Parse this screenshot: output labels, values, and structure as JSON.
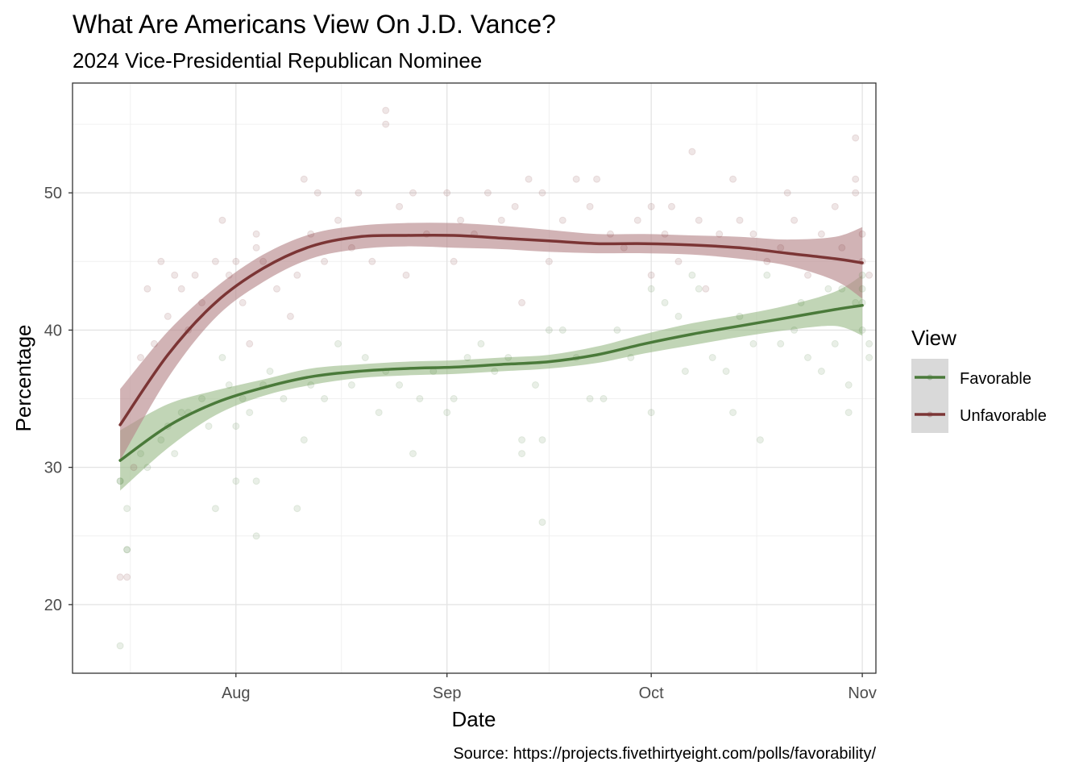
{
  "chart_data": {
    "type": "scatter",
    "title": "What Are Americans View On J.D. Vance?",
    "subtitle": "2024 Vice-Presidential Republican Nominee",
    "xlabel": "Date",
    "ylabel": "Percentage",
    "caption": "Source: https://projects.fivethirtyeight.com/polls/favorability/",
    "xlim": [
      "2024-07-08",
      "2024-11-03"
    ],
    "ylim": [
      15,
      58
    ],
    "x_ticks": [
      {
        "date": "2024-08-01",
        "label": "Aug"
      },
      {
        "date": "2024-09-01",
        "label": "Sep"
      },
      {
        "date": "2024-10-01",
        "label": "Oct"
      },
      {
        "date": "2024-11-01",
        "label": "Nov"
      }
    ],
    "y_ticks": [
      20,
      30,
      40,
      50
    ],
    "grid": true,
    "legend": {
      "title": "View",
      "position": "right",
      "items": [
        {
          "label": "Favorable",
          "color": "#4a7a3a"
        },
        {
          "label": "Unfavorable",
          "color": "#7b3535"
        }
      ]
    },
    "series": [
      {
        "name": "Favorable",
        "color": "#4a7a3a",
        "band_color": "#9fbf8f",
        "smooth": {
          "x": [
            "2024-07-15",
            "2024-07-22",
            "2024-07-29",
            "2024-08-05",
            "2024-08-12",
            "2024-08-19",
            "2024-08-26",
            "2024-09-02",
            "2024-09-09",
            "2024-09-16",
            "2024-09-23",
            "2024-09-30",
            "2024-10-07",
            "2024-10-14",
            "2024-10-21",
            "2024-10-28",
            "2024-11-01"
          ],
          "y": [
            30.5,
            33.0,
            34.7,
            35.8,
            36.6,
            37.0,
            37.2,
            37.3,
            37.5,
            37.7,
            38.2,
            39.0,
            39.7,
            40.3,
            40.9,
            41.5,
            41.8
          ],
          "lower": [
            28.3,
            31.4,
            33.8,
            35.2,
            36.0,
            36.5,
            36.7,
            36.8,
            37.0,
            37.2,
            37.6,
            38.3,
            38.9,
            39.5,
            40.0,
            40.3,
            39.6
          ],
          "upper": [
            32.7,
            34.6,
            35.6,
            36.4,
            37.2,
            37.5,
            37.7,
            37.8,
            38.0,
            38.2,
            38.8,
            39.7,
            40.5,
            41.1,
            41.8,
            42.8,
            44.0
          ]
        },
        "points": [
          {
            "x": "2024-07-15",
            "y": 29
          },
          {
            "x": "2024-07-15",
            "y": 29
          },
          {
            "x": "2024-07-16",
            "y": 27
          },
          {
            "x": "2024-07-16",
            "y": 24
          },
          {
            "x": "2024-07-16",
            "y": 24
          },
          {
            "x": "2024-07-15",
            "y": 17
          },
          {
            "x": "2024-07-18",
            "y": 31
          },
          {
            "x": "2024-07-19",
            "y": 30
          },
          {
            "x": "2024-07-21",
            "y": 32
          },
          {
            "x": "2024-07-22",
            "y": 33
          },
          {
            "x": "2024-07-23",
            "y": 31
          },
          {
            "x": "2024-07-24",
            "y": 34
          },
          {
            "x": "2024-07-25",
            "y": 34
          },
          {
            "x": "2024-07-27",
            "y": 35
          },
          {
            "x": "2024-07-28",
            "y": 33
          },
          {
            "x": "2024-07-30",
            "y": 38
          },
          {
            "x": "2024-07-31",
            "y": 36
          },
          {
            "x": "2024-08-01",
            "y": 33
          },
          {
            "x": "2024-08-01",
            "y": 29
          },
          {
            "x": "2024-07-29",
            "y": 27
          },
          {
            "x": "2024-08-02",
            "y": 35
          },
          {
            "x": "2024-08-03",
            "y": 34
          },
          {
            "x": "2024-08-04",
            "y": 29
          },
          {
            "x": "2024-08-04",
            "y": 25
          },
          {
            "x": "2024-08-05",
            "y": 36
          },
          {
            "x": "2024-08-06",
            "y": 37
          },
          {
            "x": "2024-08-08",
            "y": 35
          },
          {
            "x": "2024-08-10",
            "y": 27
          },
          {
            "x": "2024-08-11",
            "y": 32
          },
          {
            "x": "2024-08-12",
            "y": 36
          },
          {
            "x": "2024-08-14",
            "y": 35
          },
          {
            "x": "2024-08-16",
            "y": 39
          },
          {
            "x": "2024-08-18",
            "y": 36
          },
          {
            "x": "2024-08-20",
            "y": 38
          },
          {
            "x": "2024-08-22",
            "y": 34
          },
          {
            "x": "2024-08-23",
            "y": 37
          },
          {
            "x": "2024-08-25",
            "y": 36
          },
          {
            "x": "2024-08-27",
            "y": 31
          },
          {
            "x": "2024-08-28",
            "y": 35
          },
          {
            "x": "2024-08-30",
            "y": 37
          },
          {
            "x": "2024-09-01",
            "y": 34
          },
          {
            "x": "2024-09-02",
            "y": 35
          },
          {
            "x": "2024-09-04",
            "y": 38
          },
          {
            "x": "2024-09-06",
            "y": 39
          },
          {
            "x": "2024-09-08",
            "y": 37
          },
          {
            "x": "2024-09-10",
            "y": 38
          },
          {
            "x": "2024-09-12",
            "y": 32
          },
          {
            "x": "2024-09-12",
            "y": 31
          },
          {
            "x": "2024-09-14",
            "y": 36
          },
          {
            "x": "2024-09-15",
            "y": 32
          },
          {
            "x": "2024-09-15",
            "y": 26
          },
          {
            "x": "2024-09-16",
            "y": 40
          },
          {
            "x": "2024-09-18",
            "y": 40
          },
          {
            "x": "2024-09-20",
            "y": 38
          },
          {
            "x": "2024-09-22",
            "y": 35
          },
          {
            "x": "2024-09-24",
            "y": 35
          },
          {
            "x": "2024-09-26",
            "y": 40
          },
          {
            "x": "2024-09-28",
            "y": 38
          },
          {
            "x": "2024-10-01",
            "y": 43
          },
          {
            "x": "2024-10-01",
            "y": 34
          },
          {
            "x": "2024-10-03",
            "y": 42
          },
          {
            "x": "2024-10-05",
            "y": 41
          },
          {
            "x": "2024-10-06",
            "y": 37
          },
          {
            "x": "2024-10-07",
            "y": 44
          },
          {
            "x": "2024-10-08",
            "y": 43
          },
          {
            "x": "2024-10-10",
            "y": 38
          },
          {
            "x": "2024-10-12",
            "y": 37
          },
          {
            "x": "2024-10-13",
            "y": 34
          },
          {
            "x": "2024-10-14",
            "y": 41
          },
          {
            "x": "2024-10-16",
            "y": 39
          },
          {
            "x": "2024-10-17",
            "y": 32
          },
          {
            "x": "2024-10-18",
            "y": 44
          },
          {
            "x": "2024-10-20",
            "y": 39
          },
          {
            "x": "2024-10-22",
            "y": 40
          },
          {
            "x": "2024-10-23",
            "y": 42
          },
          {
            "x": "2024-10-24",
            "y": 38
          },
          {
            "x": "2024-10-26",
            "y": 37
          },
          {
            "x": "2024-10-27",
            "y": 43
          },
          {
            "x": "2024-10-28",
            "y": 39
          },
          {
            "x": "2024-10-29",
            "y": 43
          },
          {
            "x": "2024-10-30",
            "y": 34
          },
          {
            "x": "2024-10-30",
            "y": 36
          },
          {
            "x": "2024-10-31",
            "y": 42
          },
          {
            "x": "2024-11-01",
            "y": 44
          },
          {
            "x": "2024-11-01",
            "y": 40
          },
          {
            "x": "2024-11-01",
            "y": 43
          },
          {
            "x": "2024-11-01",
            "y": 42
          },
          {
            "x": "2024-11-02",
            "y": 39
          },
          {
            "x": "2024-11-02",
            "y": 38
          }
        ]
      },
      {
        "name": "Unfavorable",
        "color": "#7b3535",
        "band_color": "#b88a8e",
        "smooth": {
          "x": [
            "2024-07-15",
            "2024-07-22",
            "2024-07-29",
            "2024-08-05",
            "2024-08-12",
            "2024-08-19",
            "2024-08-26",
            "2024-09-02",
            "2024-09-09",
            "2024-09-16",
            "2024-09-23",
            "2024-09-30",
            "2024-10-07",
            "2024-10-14",
            "2024-10-21",
            "2024-10-28",
            "2024-11-01"
          ],
          "y": [
            33.1,
            38.2,
            42.0,
            44.5,
            46.1,
            46.8,
            46.9,
            46.9,
            46.7,
            46.5,
            46.3,
            46.3,
            46.2,
            46.0,
            45.6,
            45.2,
            44.9
          ],
          "lower": [
            30.5,
            36.5,
            40.9,
            43.5,
            45.2,
            45.9,
            46.1,
            46.0,
            45.9,
            45.7,
            45.6,
            45.6,
            45.5,
            45.2,
            44.7,
            43.6,
            42.3
          ],
          "upper": [
            35.7,
            39.9,
            43.1,
            45.5,
            47.0,
            47.6,
            47.8,
            47.8,
            47.6,
            47.3,
            47.0,
            47.0,
            46.9,
            46.8,
            46.6,
            46.8,
            47.5
          ]
        },
        "points": [
          {
            "x": "2024-07-15",
            "y": 22
          },
          {
            "x": "2024-07-16",
            "y": 22
          },
          {
            "x": "2024-07-17",
            "y": 30
          },
          {
            "x": "2024-07-18",
            "y": 38
          },
          {
            "x": "2024-07-19",
            "y": 43
          },
          {
            "x": "2024-07-20",
            "y": 39
          },
          {
            "x": "2024-07-21",
            "y": 45
          },
          {
            "x": "2024-07-22",
            "y": 41
          },
          {
            "x": "2024-07-23",
            "y": 44
          },
          {
            "x": "2024-07-24",
            "y": 43
          },
          {
            "x": "2024-07-25",
            "y": 40
          },
          {
            "x": "2024-07-26",
            "y": 44
          },
          {
            "x": "2024-07-27",
            "y": 42
          },
          {
            "x": "2024-07-29",
            "y": 45
          },
          {
            "x": "2024-07-30",
            "y": 48
          },
          {
            "x": "2024-07-31",
            "y": 44
          },
          {
            "x": "2024-08-01",
            "y": 45
          },
          {
            "x": "2024-08-02",
            "y": 42
          },
          {
            "x": "2024-08-03",
            "y": 39
          },
          {
            "x": "2024-08-04",
            "y": 46
          },
          {
            "x": "2024-08-04",
            "y": 47
          },
          {
            "x": "2024-08-05",
            "y": 45
          },
          {
            "x": "2024-08-07",
            "y": 43
          },
          {
            "x": "2024-08-09",
            "y": 41
          },
          {
            "x": "2024-08-10",
            "y": 44
          },
          {
            "x": "2024-08-11",
            "y": 51
          },
          {
            "x": "2024-08-12",
            "y": 47
          },
          {
            "x": "2024-08-13",
            "y": 50
          },
          {
            "x": "2024-08-14",
            "y": 45
          },
          {
            "x": "2024-08-16",
            "y": 48
          },
          {
            "x": "2024-08-18",
            "y": 46
          },
          {
            "x": "2024-08-19",
            "y": 50
          },
          {
            "x": "2024-08-21",
            "y": 45
          },
          {
            "x": "2024-08-23",
            "y": 56
          },
          {
            "x": "2024-08-23",
            "y": 55
          },
          {
            "x": "2024-08-25",
            "y": 49
          },
          {
            "x": "2024-08-26",
            "y": 44
          },
          {
            "x": "2024-08-27",
            "y": 50
          },
          {
            "x": "2024-08-29",
            "y": 47
          },
          {
            "x": "2024-09-01",
            "y": 50
          },
          {
            "x": "2024-09-02",
            "y": 45
          },
          {
            "x": "2024-09-03",
            "y": 48
          },
          {
            "x": "2024-09-05",
            "y": 47
          },
          {
            "x": "2024-09-07",
            "y": 50
          },
          {
            "x": "2024-09-09",
            "y": 48
          },
          {
            "x": "2024-09-11",
            "y": 49
          },
          {
            "x": "2024-09-12",
            "y": 42
          },
          {
            "x": "2024-09-13",
            "y": 51
          },
          {
            "x": "2024-09-15",
            "y": 50
          },
          {
            "x": "2024-09-16",
            "y": 45
          },
          {
            "x": "2024-09-18",
            "y": 48
          },
          {
            "x": "2024-09-20",
            "y": 51
          },
          {
            "x": "2024-09-22",
            "y": 49
          },
          {
            "x": "2024-09-23",
            "y": 51
          },
          {
            "x": "2024-09-25",
            "y": 47
          },
          {
            "x": "2024-09-27",
            "y": 46
          },
          {
            "x": "2024-09-29",
            "y": 48
          },
          {
            "x": "2024-10-01",
            "y": 49
          },
          {
            "x": "2024-10-01",
            "y": 44
          },
          {
            "x": "2024-10-03",
            "y": 47
          },
          {
            "x": "2024-10-04",
            "y": 49
          },
          {
            "x": "2024-10-05",
            "y": 45
          },
          {
            "x": "2024-10-07",
            "y": 53
          },
          {
            "x": "2024-10-08",
            "y": 48
          },
          {
            "x": "2024-10-09",
            "y": 43
          },
          {
            "x": "2024-10-11",
            "y": 47
          },
          {
            "x": "2024-10-13",
            "y": 51
          },
          {
            "x": "2024-10-14",
            "y": 48
          },
          {
            "x": "2024-10-16",
            "y": 47
          },
          {
            "x": "2024-10-18",
            "y": 45
          },
          {
            "x": "2024-10-20",
            "y": 46
          },
          {
            "x": "2024-10-21",
            "y": 50
          },
          {
            "x": "2024-10-22",
            "y": 48
          },
          {
            "x": "2024-10-24",
            "y": 44
          },
          {
            "x": "2024-10-26",
            "y": 47
          },
          {
            "x": "2024-10-28",
            "y": 49
          },
          {
            "x": "2024-10-29",
            "y": 46
          },
          {
            "x": "2024-10-31",
            "y": 54
          },
          {
            "x": "2024-10-31",
            "y": 51
          },
          {
            "x": "2024-10-31",
            "y": 50
          },
          {
            "x": "2024-11-01",
            "y": 47
          },
          {
            "x": "2024-11-01",
            "y": 45
          },
          {
            "x": "2024-11-02",
            "y": 44
          }
        ]
      }
    ]
  }
}
